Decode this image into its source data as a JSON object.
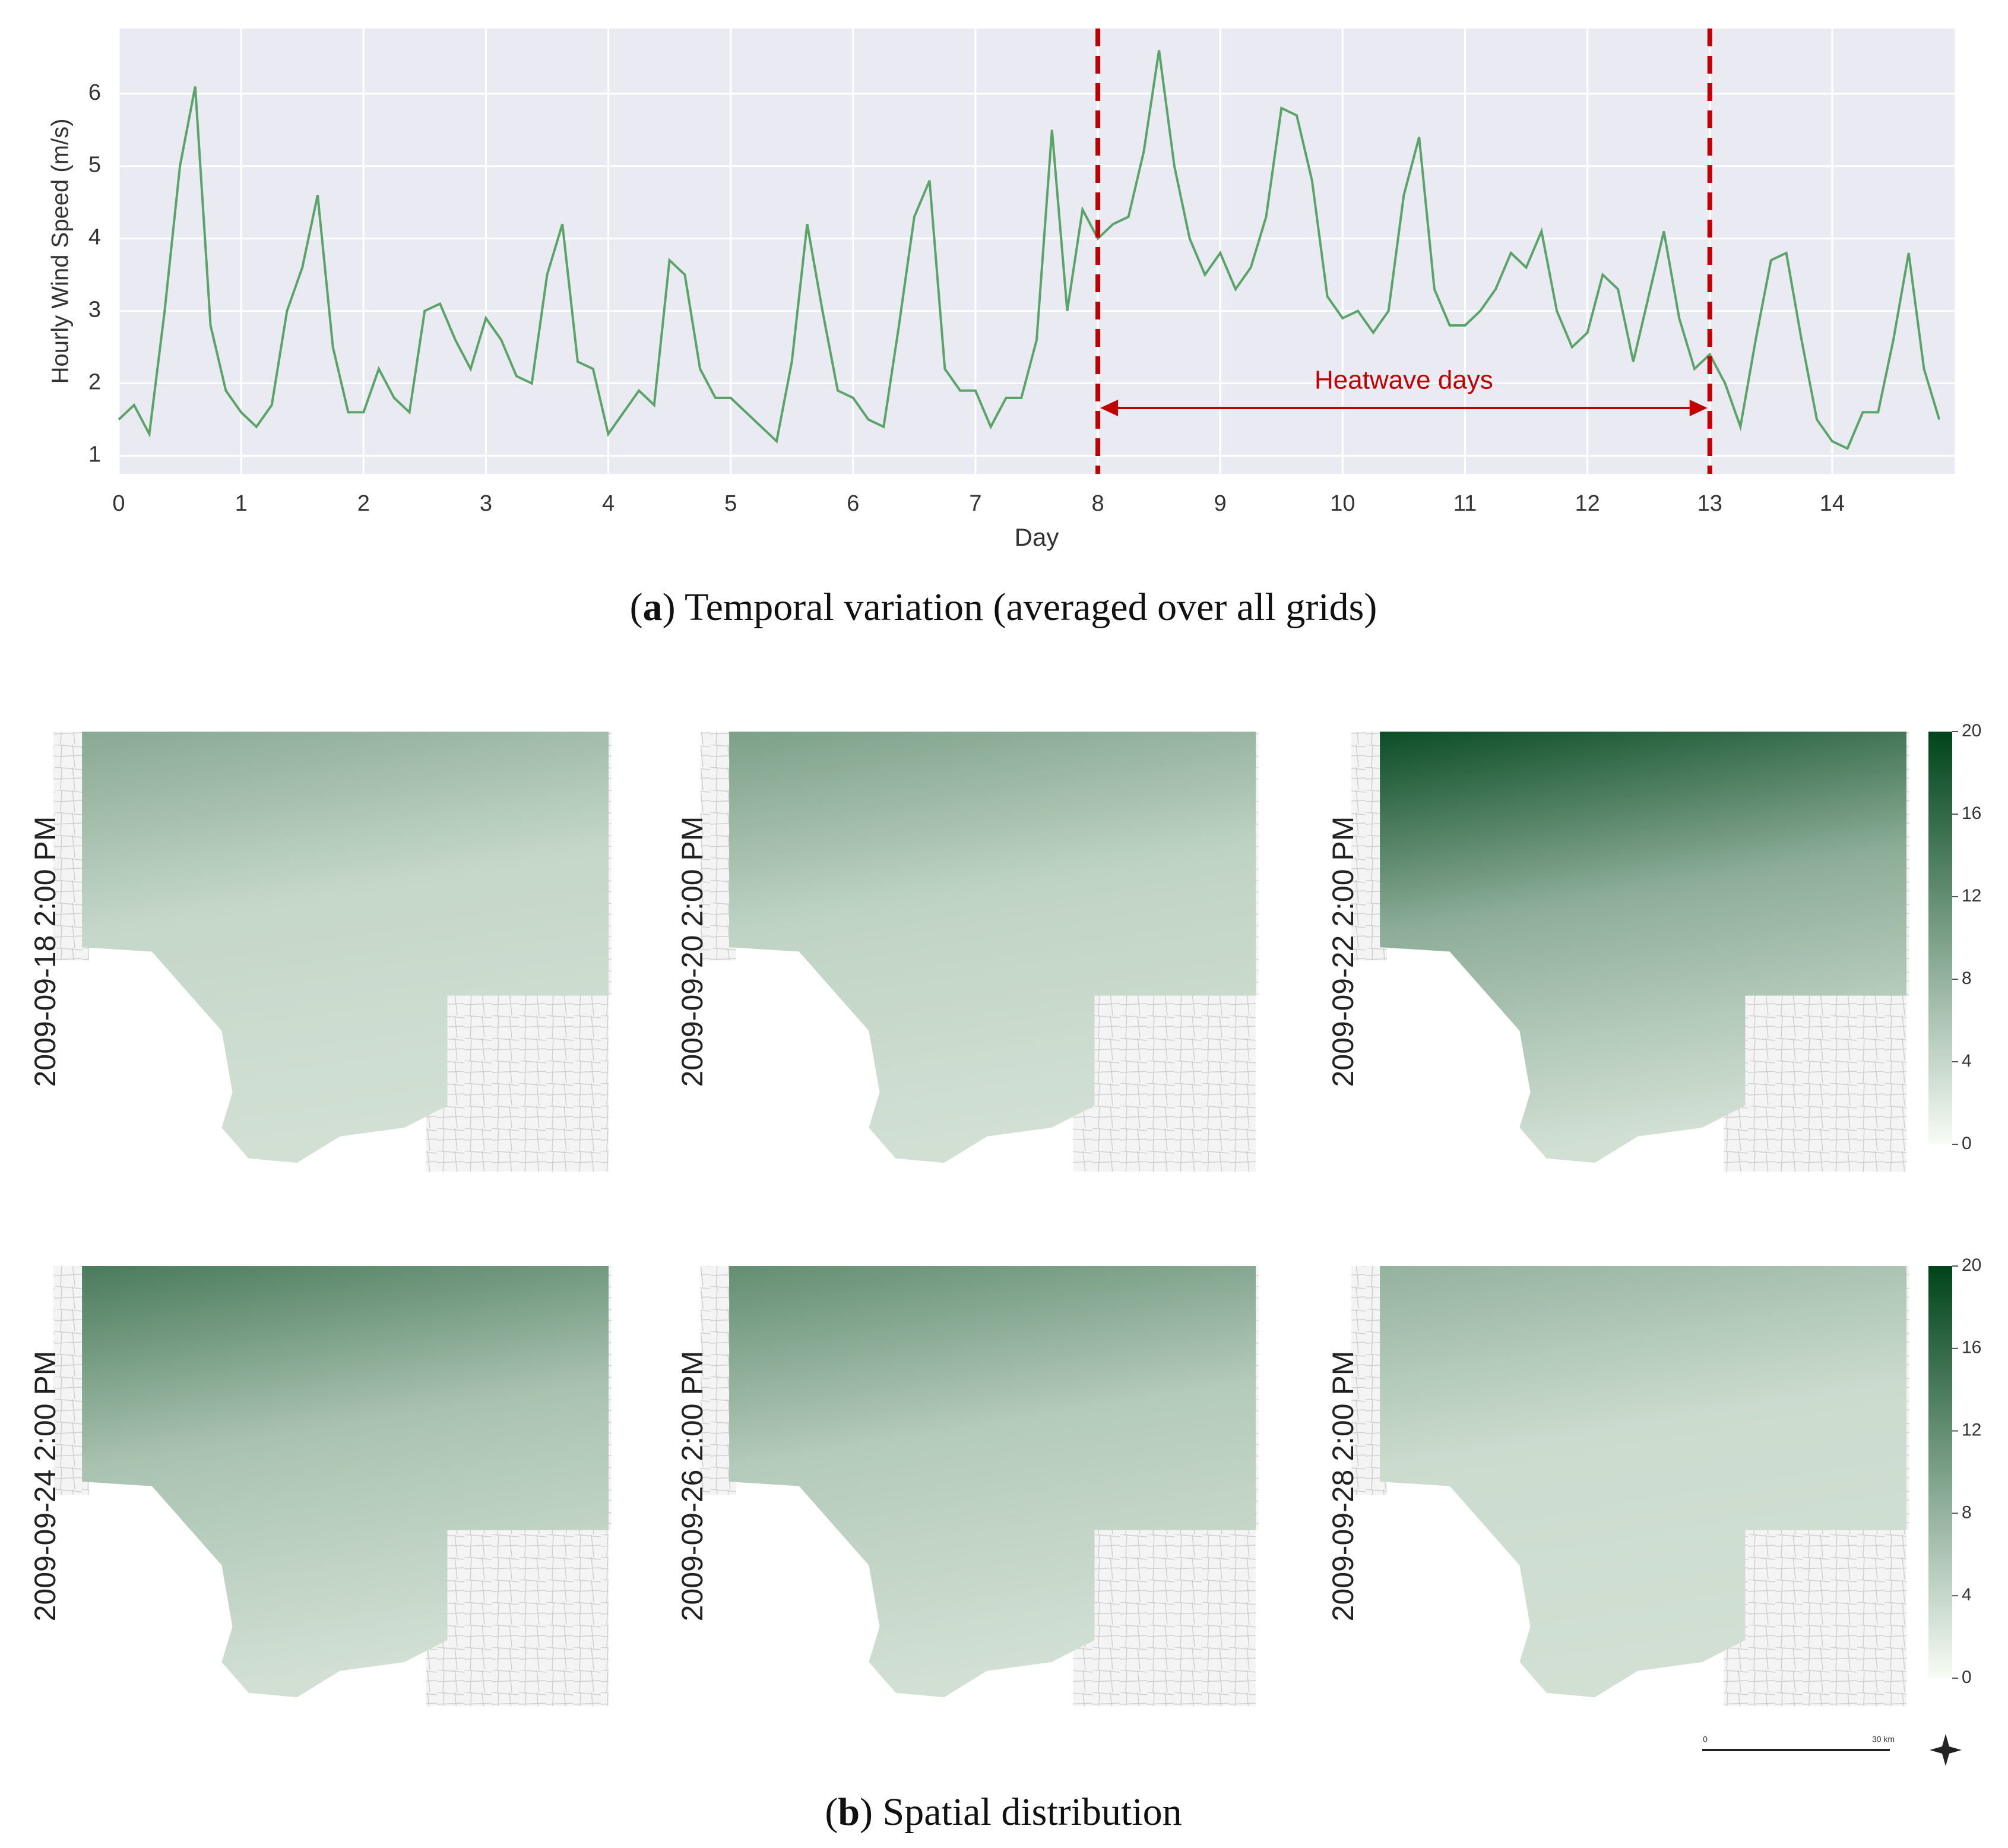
{
  "chart_data": [
    {
      "type": "line",
      "ylabel": "Hourly Wind Speed (m/s)",
      "xlabel": "Day",
      "x": [
        0,
        0.125,
        0.25,
        0.375,
        0.5,
        0.625,
        0.75,
        0.875,
        1,
        1.125,
        1.25,
        1.375,
        1.5,
        1.625,
        1.75,
        1.875,
        2,
        2.125,
        2.25,
        2.375,
        2.5,
        2.625,
        2.75,
        2.875,
        3,
        3.125,
        3.25,
        3.375,
        3.5,
        3.625,
        3.75,
        3.875,
        4,
        4.125,
        4.25,
        4.375,
        4.5,
        4.625,
        4.75,
        4.875,
        5,
        5.125,
        5.25,
        5.375,
        5.5,
        5.625,
        5.75,
        5.875,
        6,
        6.125,
        6.25,
        6.375,
        6.5,
        6.625,
        6.75,
        6.875,
        7,
        7.125,
        7.25,
        7.375,
        7.5,
        7.625,
        7.75,
        7.875,
        8,
        8.125,
        8.25,
        8.375,
        8.5,
        8.625,
        8.75,
        8.875,
        9,
        9.125,
        9.25,
        9.375,
        9.5,
        9.625,
        9.75,
        9.875,
        10,
        10.125,
        10.25,
        10.375,
        10.5,
        10.625,
        10.75,
        10.875,
        11,
        11.125,
        11.25,
        11.375,
        11.5,
        11.625,
        11.75,
        11.875,
        12,
        12.125,
        12.25,
        12.375,
        12.5,
        12.625,
        12.75,
        12.875,
        13,
        13.125,
        13.25,
        13.375,
        13.5,
        13.625,
        13.75,
        13.875,
        14,
        14.125,
        14.25,
        14.375,
        14.5,
        14.625,
        14.75,
        14.875
      ],
      "values": [
        1.5,
        1.7,
        1.3,
        3.0,
        5.0,
        6.1,
        2.8,
        1.9,
        1.6,
        1.4,
        1.7,
        3.0,
        3.6,
        4.6,
        2.5,
        1.6,
        1.6,
        2.2,
        1.8,
        1.6,
        3.0,
        3.1,
        2.6,
        2.2,
        2.9,
        2.6,
        2.1,
        2.0,
        3.5,
        4.2,
        2.3,
        2.2,
        1.3,
        1.6,
        1.9,
        1.7,
        3.7,
        3.5,
        2.2,
        1.8,
        1.8,
        1.6,
        1.4,
        1.2,
        2.3,
        4.2,
        3.0,
        1.9,
        1.8,
        1.5,
        1.4,
        2.8,
        4.3,
        4.8,
        2.2,
        1.9,
        1.9,
        1.4,
        1.8,
        1.8,
        2.6,
        5.5,
        3.0,
        4.4,
        4.0,
        4.2,
        4.3,
        5.2,
        6.6,
        5.0,
        4.0,
        3.5,
        3.8,
        3.3,
        3.6,
        4.3,
        5.8,
        5.7,
        4.8,
        3.2,
        2.9,
        3.0,
        2.7,
        3.0,
        4.6,
        5.4,
        3.3,
        2.8,
        2.8,
        3.0,
        3.3,
        3.8,
        3.6,
        4.1,
        3.0,
        2.5,
        2.7,
        3.5,
        3.3,
        2.3,
        3.2,
        4.1,
        2.9,
        2.2,
        2.4,
        2.0,
        1.4,
        2.6,
        3.7,
        3.8,
        2.6,
        1.5,
        1.2,
        1.1,
        1.6,
        1.6,
        2.6,
        3.8,
        2.2,
        1.5
      ],
      "color": "#5aa469",
      "xlim": [
        0,
        15
      ],
      "ylim": [
        0.75,
        6.9
      ],
      "xticks": [
        0,
        1,
        2,
        3,
        4,
        5,
        6,
        7,
        8,
        9,
        10,
        11,
        12,
        13,
        14
      ],
      "yticks": [
        1,
        2,
        3,
        4,
        5,
        6
      ],
      "grid": true,
      "vlines": {
        "values": [
          8,
          13
        ],
        "color": "#c00000"
      },
      "annotation": {
        "text": "Heatwave days",
        "x_start": 8,
        "x_end": 13,
        "y": 1.66,
        "color": "#c00000"
      },
      "caption": [
        "(",
        "a",
        ") Temporal variation (averaged over all grids)"
      ]
    },
    {
      "type": "map",
      "panels": [
        {
          "label": "2009-09-18 2:00 PM"
        },
        {
          "label": "2009-09-20 2:00 PM"
        },
        {
          "label": "2009-09-22 2:00 PM"
        },
        {
          "label": "2009-09-24 2:00 PM"
        },
        {
          "label": "2009-09-26 2:00 PM"
        },
        {
          "label": "2009-09-28 2:00 PM"
        }
      ],
      "colorbar": {
        "lim": [
          0,
          20
        ],
        "ticks": [
          0,
          4,
          8,
          12,
          16,
          20
        ],
        "colors": [
          "#f7fcf5",
          "#00441b"
        ]
      },
      "scale_bar": {
        "labels": [
          "0",
          "30 km"
        ]
      },
      "caption": [
        "(",
        "b",
        ") Spatial distribution"
      ]
    }
  ]
}
